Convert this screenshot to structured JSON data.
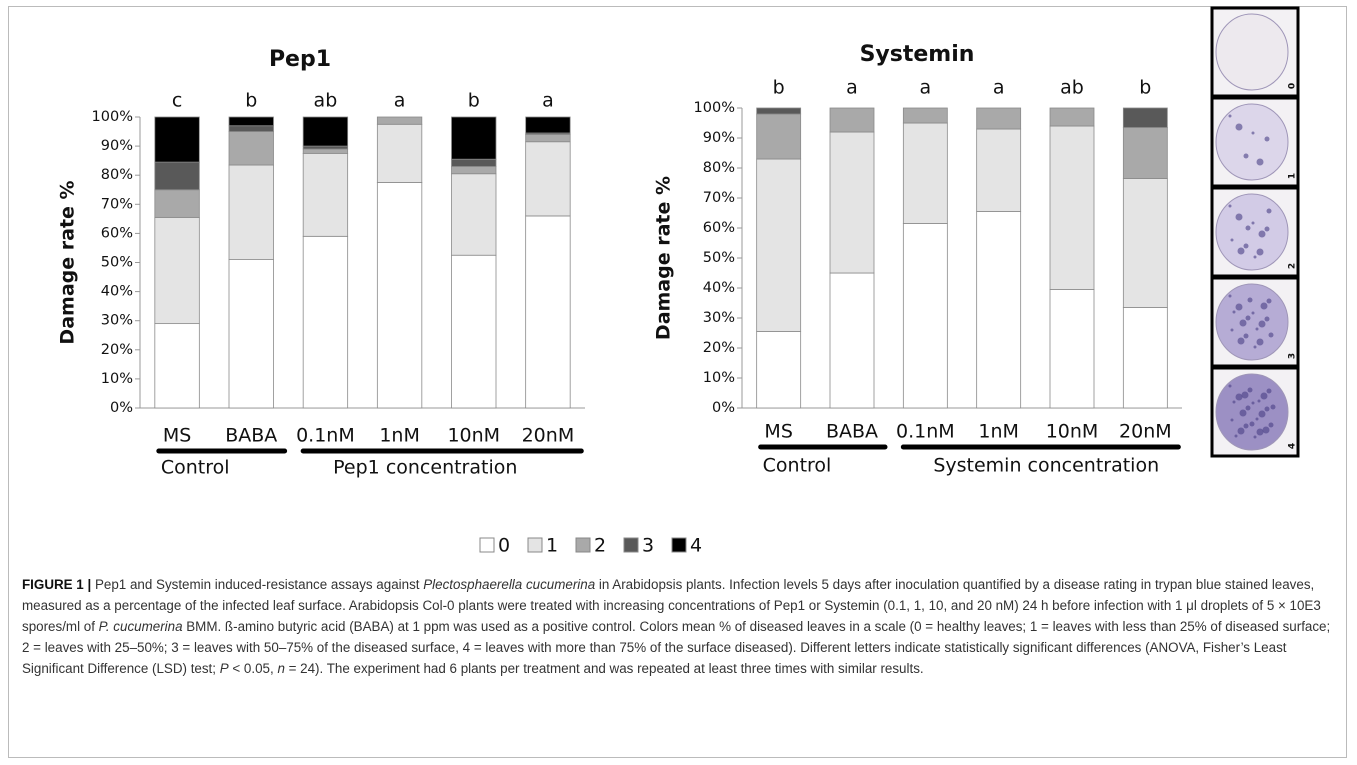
{
  "chart_data": [
    {
      "type": "stacked-bar",
      "title": "Pep1",
      "ylabel": "Damage rate %",
      "categories": [
        "MS",
        "BABA",
        "0.1nM",
        "1nM",
        "10nM",
        "20nM"
      ],
      "letters": [
        "c",
        "b",
        "ab",
        "a",
        "b",
        "a"
      ],
      "groups": [
        "Control",
        "Pep1 concentration"
      ],
      "series": [
        {
          "name": "0",
          "color": "#ffffff",
          "values": [
            29,
            51,
            59,
            77.5,
            52.5,
            66
          ]
        },
        {
          "name": "1",
          "color": "#e4e4e4",
          "values": [
            36.5,
            32.5,
            28.5,
            20,
            28,
            25.5
          ]
        },
        {
          "name": "2",
          "color": "#a9a9a9",
          "values": [
            9.5,
            11.5,
            1.5,
            2.5,
            2.5,
            2.5
          ]
        },
        {
          "name": "3",
          "color": "#595959",
          "values": [
            9.5,
            2,
            1,
            0,
            2.5,
            0.5
          ]
        },
        {
          "name": "4",
          "color": "#000000",
          "values": [
            15.5,
            3,
            10,
            0,
            14.5,
            5.5
          ]
        }
      ],
      "ylim": [
        0,
        100
      ],
      "yticks": [
        {
          "value": 0,
          "label": "0%"
        },
        {
          "value": 10,
          "label": "10%"
        },
        {
          "value": 20,
          "label": "20%"
        },
        {
          "value": 30,
          "label": "30%"
        },
        {
          "value": 40,
          "label": "40%"
        },
        {
          "value": 50,
          "label": "50%"
        },
        {
          "value": 60,
          "label": "60%"
        },
        {
          "value": 70,
          "label": "70%"
        },
        {
          "value": 80,
          "label": "80%"
        },
        {
          "value": 90,
          "label": "90%"
        },
        {
          "value": 100,
          "label": "100%"
        }
      ]
    },
    {
      "type": "stacked-bar",
      "title": "Systemin",
      "ylabel": "Damage rate %",
      "categories": [
        "MS",
        "BABA",
        "0.1nM",
        "1nM",
        "10nM",
        "20nM"
      ],
      "letters": [
        "b",
        "a",
        "a",
        "a",
        "ab",
        "b"
      ],
      "groups": [
        "Control",
        "Systemin concentration"
      ],
      "series": [
        {
          "color": "#ffffff",
          "values": [
            25.5,
            45,
            61.5,
            65.5,
            39.5,
            33.5
          ]
        },
        {
          "color": "#e4e4e4",
          "values": [
            57.5,
            47,
            33.5,
            27.5,
            54.5,
            43
          ]
        },
        {
          "color": "#a9a9a9",
          "values": [
            15,
            8,
            5,
            7,
            6,
            17
          ]
        },
        {
          "color": "#595959",
          "values": [
            2,
            0,
            0,
            0,
            0,
            6.5
          ]
        },
        {
          "color": "#000000",
          "values": [
            0,
            0,
            0,
            0,
            0,
            0
          ]
        }
      ],
      "ylim": [
        0,
        100
      ],
      "yticks": [
        {
          "value": 0,
          "label": "0%"
        },
        {
          "value": 10,
          "label": "10%"
        },
        {
          "value": 20,
          "label": "20%"
        },
        {
          "value": 30,
          "label": "30%"
        },
        {
          "value": 40,
          "label": "40%"
        },
        {
          "value": 50,
          "label": "50%"
        },
        {
          "value": 60,
          "label": "60%"
        },
        {
          "value": 70,
          "label": "70%"
        },
        {
          "value": 80,
          "label": "80%"
        },
        {
          "value": 90,
          "label": "90%"
        },
        {
          "value": 100,
          "label": "100%"
        }
      ]
    }
  ],
  "leaf_scale_labels": [
    "0",
    "1",
    "2",
    "3",
    "4"
  ],
  "caption": {
    "label": "FIGURE 1 |",
    "parts": [
      {
        "text": " Pep1 and Systemin induced-resistance assays against "
      },
      {
        "text": "Plectosphaerella cucumerina",
        "style": "italic"
      },
      {
        "text": " in Arabidopsis plants. Infection levels 5 days after inoculation quantified by a disease rating in trypan blue stained leaves, measured as a percentage of the infected leaf surface. Arabidopsis Col-0 plants were treated with increasing concentrations of Pep1 or Systemin (0.1, 1, 10, and 20 nM) 24 h before infection with 1 μl droplets of 5 × 10E3 spores/ml of "
      },
      {
        "text": "P. cucumerina",
        "style": "italic"
      },
      {
        "text": " BMM. ß-amino butyric acid (BABA) at 1 ppm was used as a positive control. Colors mean % of diseased leaves in a scale (0 = healthy leaves; 1 = leaves with less than 25% of diseased surface; 2 = leaves with 25–50%; 3 = leaves with 50–75% of the diseased surface, 4 = leaves with more than 75% of the surface diseased). Different letters indicate statistically significant differences (ANOVA, Fisher’s Least Significant Difference (LSD) test; "
      },
      {
        "text": "P",
        "style": "italic"
      },
      {
        "text": " < 0.05, "
      },
      {
        "text": "n",
        "style": "italic"
      },
      {
        "text": " = 24). The experiment had 6 plants per treatment and was repeated at least three times with similar results."
      }
    ]
  }
}
